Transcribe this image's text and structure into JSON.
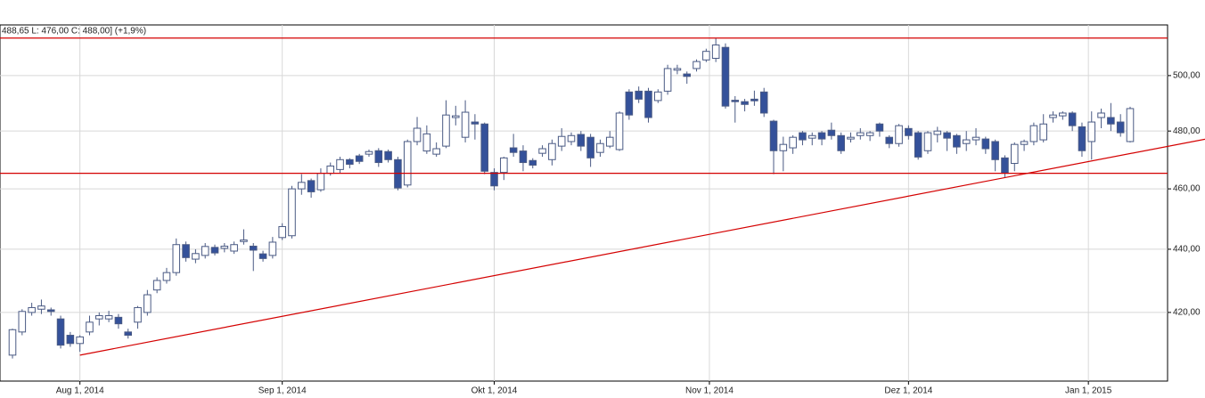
{
  "chart_data": {
    "type": "candlestick",
    "annotation": "488,65  L: 476,00  C: 488,00] (+1,9%)",
    "x": [
      "2014-07-23",
      "2014-07-24",
      "2014-07-25",
      "2014-07-28",
      "2014-07-29",
      "2014-07-30",
      "2014-07-31",
      "2014-08-01",
      "2014-08-04",
      "2014-08-05",
      "2014-08-06",
      "2014-08-07",
      "2014-08-08",
      "2014-08-11",
      "2014-08-12",
      "2014-08-13",
      "2014-08-14",
      "2014-08-15",
      "2014-08-18",
      "2014-08-19",
      "2014-08-20",
      "2014-08-21",
      "2014-08-22",
      "2014-08-25",
      "2014-08-26",
      "2014-08-27",
      "2014-08-28",
      "2014-08-29",
      "2014-09-01",
      "2014-09-02",
      "2014-09-03",
      "2014-09-04",
      "2014-09-05",
      "2014-09-08",
      "2014-09-09",
      "2014-09-10",
      "2014-09-11",
      "2014-09-12",
      "2014-09-15",
      "2014-09-16",
      "2014-09-17",
      "2014-09-18",
      "2014-09-19",
      "2014-09-22",
      "2014-09-23",
      "2014-09-24",
      "2014-09-25",
      "2014-09-26",
      "2014-09-29",
      "2014-09-30",
      "2014-10-01",
      "2014-10-02",
      "2014-10-03",
      "2014-10-06",
      "2014-10-07",
      "2014-10-08",
      "2014-10-09",
      "2014-10-10",
      "2014-10-13",
      "2014-10-14",
      "2014-10-15",
      "2014-10-16",
      "2014-10-17",
      "2014-10-20",
      "2014-10-21",
      "2014-10-22",
      "2014-10-23",
      "2014-10-24",
      "2014-10-27",
      "2014-10-28",
      "2014-10-29",
      "2014-10-30",
      "2014-10-31",
      "2014-11-03",
      "2014-11-04",
      "2014-11-05",
      "2014-11-06",
      "2014-11-07",
      "2014-11-10",
      "2014-11-11",
      "2014-11-12",
      "2014-11-13",
      "2014-11-14",
      "2014-11-17",
      "2014-11-18",
      "2014-11-19",
      "2014-11-20",
      "2014-11-21",
      "2014-11-24",
      "2014-11-25",
      "2014-11-26",
      "2014-11-27",
      "2014-11-28",
      "2014-12-01",
      "2014-12-02",
      "2014-12-03",
      "2014-12-04",
      "2014-12-05",
      "2014-12-08",
      "2014-12-09",
      "2014-12-10",
      "2014-12-11",
      "2014-12-12",
      "2014-12-15",
      "2014-12-16",
      "2014-12-17",
      "2014-12-18",
      "2014-12-19",
      "2014-12-22",
      "2014-12-23",
      "2014-12-29",
      "2014-12-30",
      "2015-01-02",
      "2015-01-05",
      "2015-01-06",
      "2015-01-07",
      "2015-01-08"
    ],
    "open": [
      407,
      414,
      420,
      421,
      420.8,
      418,
      413,
      410.5,
      414,
      418,
      418,
      418.5,
      414,
      417,
      420,
      427,
      430,
      432.5,
      441.5,
      436.8,
      438,
      440.6,
      440.3,
      439.4,
      442.5,
      441,
      438.5,
      438,
      443.8,
      444.4,
      460,
      462.8,
      459.7,
      465.3,
      466.6,
      470,
      471.3,
      471.9,
      473.1,
      472.8,
      470,
      461.3,
      476.3,
      473,
      471.9,
      474.7,
      484.8,
      477.8,
      483.2,
      482.5,
      465.6,
      465.6,
      474.1,
      473,
      469.7,
      472.2,
      470,
      474.7,
      476.3,
      478.8,
      477.8,
      472.5,
      474.7,
      473.5,
      494,
      494.3,
      494.3,
      490.9,
      494.3,
      502,
      500.6,
      502.6,
      505.8,
      506.4,
      510.5,
      491,
      490.5,
      491.4,
      494,
      483.5,
      473.1,
      474.1,
      479.4,
      477.5,
      479.4,
      480.3,
      478.4,
      477.2,
      478.4,
      478.4,
      482.5,
      477.8,
      475.6,
      480.9,
      479.4,
      473.1,
      478.8,
      479.4,
      478.4,
      475.6,
      476.9,
      477.2,
      476.3,
      470.6,
      468.7,
      475.3,
      476.3,
      476.9,
      484.8,
      485.4,
      486.4,
      481.5,
      476.3,
      484.8,
      484.8,
      483.2,
      476.3
    ],
    "high": [
      415,
      421,
      423,
      424,
      421.5,
      419,
      414,
      413,
      419,
      420,
      420.5,
      419.5,
      415,
      422,
      427,
      431,
      434,
      443.5,
      442.5,
      440,
      442,
      441.5,
      442,
      442.5,
      446.5,
      442,
      439.5,
      444,
      448.5,
      461,
      465,
      463.5,
      467,
      469,
      471,
      470.5,
      472,
      473.5,
      474,
      473.5,
      471,
      477,
      485,
      482,
      476,
      491,
      489,
      491,
      486,
      483,
      467,
      471,
      479,
      475,
      470.5,
      475,
      477,
      481,
      479.5,
      480,
      479,
      477,
      480,
      487,
      495,
      496,
      495.5,
      495,
      504,
      504,
      501.5,
      506,
      510,
      514,
      512,
      492.5,
      491.5,
      494.5,
      495.5,
      484,
      478,
      478.5,
      480,
      479.5,
      480,
      483,
      479.5,
      479.5,
      481,
      480,
      483,
      478.5,
      482.5,
      482,
      480,
      480,
      481.5,
      480,
      479,
      480,
      481,
      478,
      477,
      471.5,
      476,
      477,
      483,
      486,
      487,
      487,
      487,
      483,
      487,
      488,
      490,
      486,
      488.65
    ],
    "low": [
      406,
      413,
      419,
      419.5,
      419,
      409,
      409.5,
      408,
      413,
      416,
      417,
      415,
      412,
      415,
      419,
      426,
      429,
      431.5,
      436,
      435.5,
      437,
      438,
      439,
      438.5,
      441.5,
      433,
      436,
      437,
      443,
      443.5,
      458,
      457,
      459,
      464.5,
      465.5,
      467,
      468.5,
      471,
      467.5,
      469,
      459.5,
      460.5,
      475,
      472,
      471,
      474,
      482,
      476,
      477,
      465,
      459.5,
      463,
      471,
      466,
      467,
      471,
      468,
      473,
      475,
      473,
      467.5,
      471,
      474,
      473,
      484,
      490,
      483,
      490,
      493,
      500.5,
      497,
      501.5,
      505,
      505,
      488,
      483,
      487,
      489,
      485,
      465,
      466,
      472,
      475,
      475,
      475,
      477,
      472,
      476,
      477,
      476.5,
      478,
      474,
      474.5,
      477,
      470,
      472,
      476,
      473,
      472,
      473,
      475,
      472,
      466,
      464,
      466,
      473,
      475,
      476,
      483,
      484,
      480,
      471,
      470,
      481,
      480,
      478,
      476
    ],
    "close": [
      414.7,
      420.3,
      421.5,
      422,
      420.3,
      410,
      410.5,
      412.5,
      417,
      419,
      419,
      416.5,
      413,
      421.5,
      425.5,
      430,
      432.5,
      441.5,
      437.3,
      438.6,
      440.9,
      438.8,
      441,
      441.5,
      443,
      439.7,
      437,
      442.3,
      447.4,
      460,
      462.2,
      459,
      465.3,
      467.8,
      470,
      468.4,
      469.4,
      472.8,
      469,
      470,
      460.3,
      476.3,
      481,
      479,
      473.8,
      485.7,
      485.4,
      486.7,
      482.5,
      466,
      461,
      470.6,
      472.5,
      469,
      468.1,
      473.8,
      475.6,
      478.1,
      478.4,
      474.7,
      470.6,
      475.6,
      477.8,
      486.4,
      485.7,
      491.4,
      484.8,
      494,
      502.6,
      502.6,
      499.7,
      505.2,
      509,
      511.4,
      488.9,
      490.5,
      489.5,
      490.8,
      486.4,
      473.1,
      475.3,
      477.8,
      476.9,
      478.4,
      477.2,
      478.4,
      473.1,
      477.8,
      479.4,
      479.4,
      480,
      475.6,
      481.9,
      478.4,
      470.9,
      479.4,
      480,
      477.5,
      474.4,
      476.9,
      477.8,
      473.8,
      470,
      465.3,
      475.3,
      476.3,
      481.9,
      482.5,
      485.7,
      486.4,
      481.9,
      473.1,
      483.2,
      486.4,
      482.5,
      479.4,
      488
    ],
    "up_color": "#ffffff",
    "down_color": "#34519a",
    "edge_color": "#4a5a84",
    "ylim": [
      399.3,
      519
    ],
    "log_scale": true,
    "yticks": [
      {
        "value": 420,
        "label": "420,00"
      },
      {
        "value": 440,
        "label": "440,00"
      },
      {
        "value": 460,
        "label": "460,00"
      },
      {
        "value": 480,
        "label": "480,00"
      },
      {
        "value": 500,
        "label": "500,00"
      }
    ],
    "xticks": [
      {
        "value": "2014-08-01",
        "label": "Aug 1, 2014"
      },
      {
        "value": "2014-09-01",
        "label": "Sep 1, 2014"
      },
      {
        "value": "2014-10-01",
        "label": "Okt 1, 2014"
      },
      {
        "value": "2014-11-01",
        "label": "Nov 1, 2014"
      },
      {
        "value": "2014-12-01",
        "label": "Dez 1, 2014"
      },
      {
        "value": "2015-01-01",
        "label": "Jan 1, 2015"
      }
    ],
    "grid": true,
    "hlines": [
      514,
      465.3
    ],
    "line_color": "#d40000",
    "trendline": {
      "x": [
        "2014-08-01",
        "2015-01-08"
      ],
      "y": [
        407,
        472.1
      ]
    }
  }
}
